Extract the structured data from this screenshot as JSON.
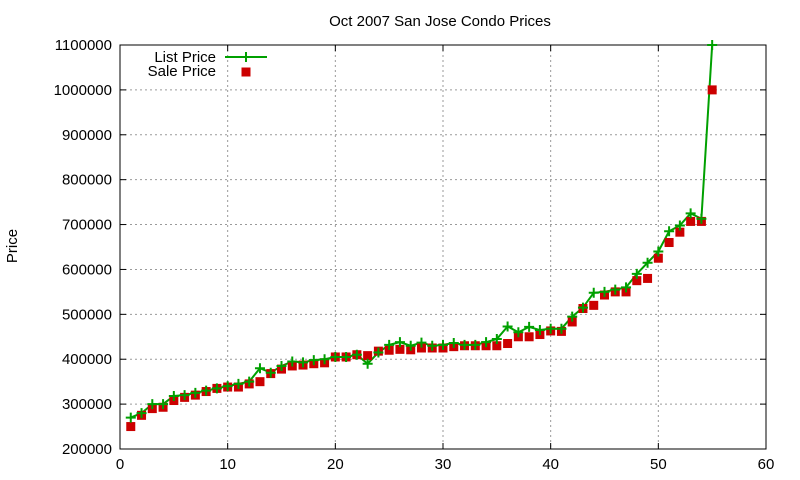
{
  "chart_data": {
    "type": "line",
    "title": "Oct 2007 San Jose Condo Prices",
    "ylabel": "Price",
    "xlabel": "",
    "xlim": [
      0,
      60
    ],
    "ylim": [
      200000,
      1100000
    ],
    "x_ticks": [
      0,
      10,
      20,
      30,
      40,
      50,
      60
    ],
    "y_ticks": [
      200000,
      300000,
      400000,
      500000,
      600000,
      700000,
      800000,
      900000,
      1000000,
      1100000
    ],
    "grid": true,
    "legend_position": "top-left",
    "series": [
      {
        "name": "List Price",
        "style": "line-with-plus-markers",
        "color": "#00a000",
        "x": [
          1,
          2,
          3,
          4,
          5,
          6,
          7,
          8,
          9,
          10,
          11,
          12,
          13,
          14,
          15,
          16,
          17,
          18,
          19,
          20,
          21,
          22,
          23,
          24,
          25,
          26,
          27,
          28,
          29,
          30,
          31,
          32,
          33,
          34,
          35,
          36,
          37,
          38,
          39,
          40,
          41,
          42,
          43,
          44,
          45,
          46,
          47,
          48,
          49,
          50,
          51,
          52,
          53,
          54,
          55
        ],
        "values": [
          270000,
          280000,
          300000,
          300000,
          318000,
          320000,
          325000,
          330000,
          335000,
          340000,
          345000,
          350000,
          380000,
          370000,
          385000,
          395000,
          393000,
          398000,
          400000,
          405000,
          405000,
          410000,
          390000,
          415000,
          432000,
          438000,
          430000,
          437000,
          430000,
          432000,
          436000,
          432000,
          432000,
          438000,
          445000,
          473000,
          460000,
          472000,
          465000,
          468000,
          468000,
          495000,
          515000,
          548000,
          550000,
          555000,
          560000,
          590000,
          615000,
          640000,
          685000,
          698000,
          725000,
          713000,
          1100000
        ]
      },
      {
        "name": "Sale Price",
        "style": "square-markers",
        "color": "#cc0000",
        "x": [
          1,
          2,
          3,
          4,
          5,
          6,
          7,
          8,
          9,
          10,
          11,
          12,
          13,
          14,
          15,
          16,
          17,
          18,
          19,
          20,
          21,
          22,
          23,
          24,
          25,
          26,
          27,
          28,
          29,
          30,
          31,
          32,
          33,
          34,
          35,
          36,
          37,
          38,
          39,
          40,
          41,
          42,
          43,
          44,
          45,
          46,
          47,
          48,
          49,
          50,
          51,
          52,
          53,
          54,
          55
        ],
        "values": [
          250000,
          275000,
          290000,
          293000,
          308000,
          315000,
          320000,
          328000,
          335000,
          338000,
          338000,
          345000,
          350000,
          368000,
          378000,
          385000,
          387000,
          390000,
          392000,
          405000,
          405000,
          410000,
          408000,
          418000,
          420000,
          422000,
          421000,
          425000,
          425000,
          425000,
          428000,
          430000,
          430000,
          430000,
          430000,
          435000,
          450000,
          450000,
          455000,
          463000,
          462000,
          483000,
          513000,
          520000,
          543000,
          550000,
          550000,
          575000,
          580000,
          625000,
          660000,
          683000,
          707000,
          707000,
          1000000
        ]
      }
    ]
  }
}
